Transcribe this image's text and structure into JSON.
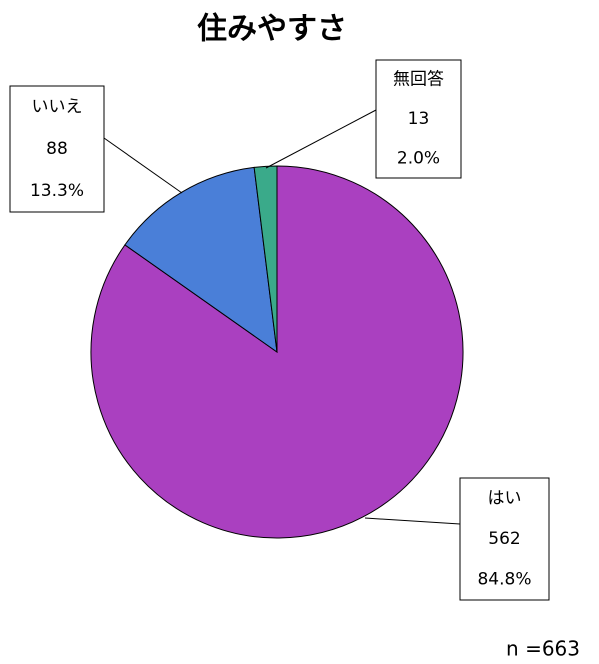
{
  "chart_data": {
    "type": "pie",
    "title": "住みやすさ",
    "categories": [
      "はい",
      "いいえ",
      "無回答"
    ],
    "values": [
      562,
      88,
      13
    ],
    "value_labels": [
      "84.8%",
      "13.3%",
      "2.0%"
    ],
    "colors": [
      "#aa40c0",
      "#4a7fd8",
      "#3aaa8a"
    ],
    "note": "n =663"
  }
}
